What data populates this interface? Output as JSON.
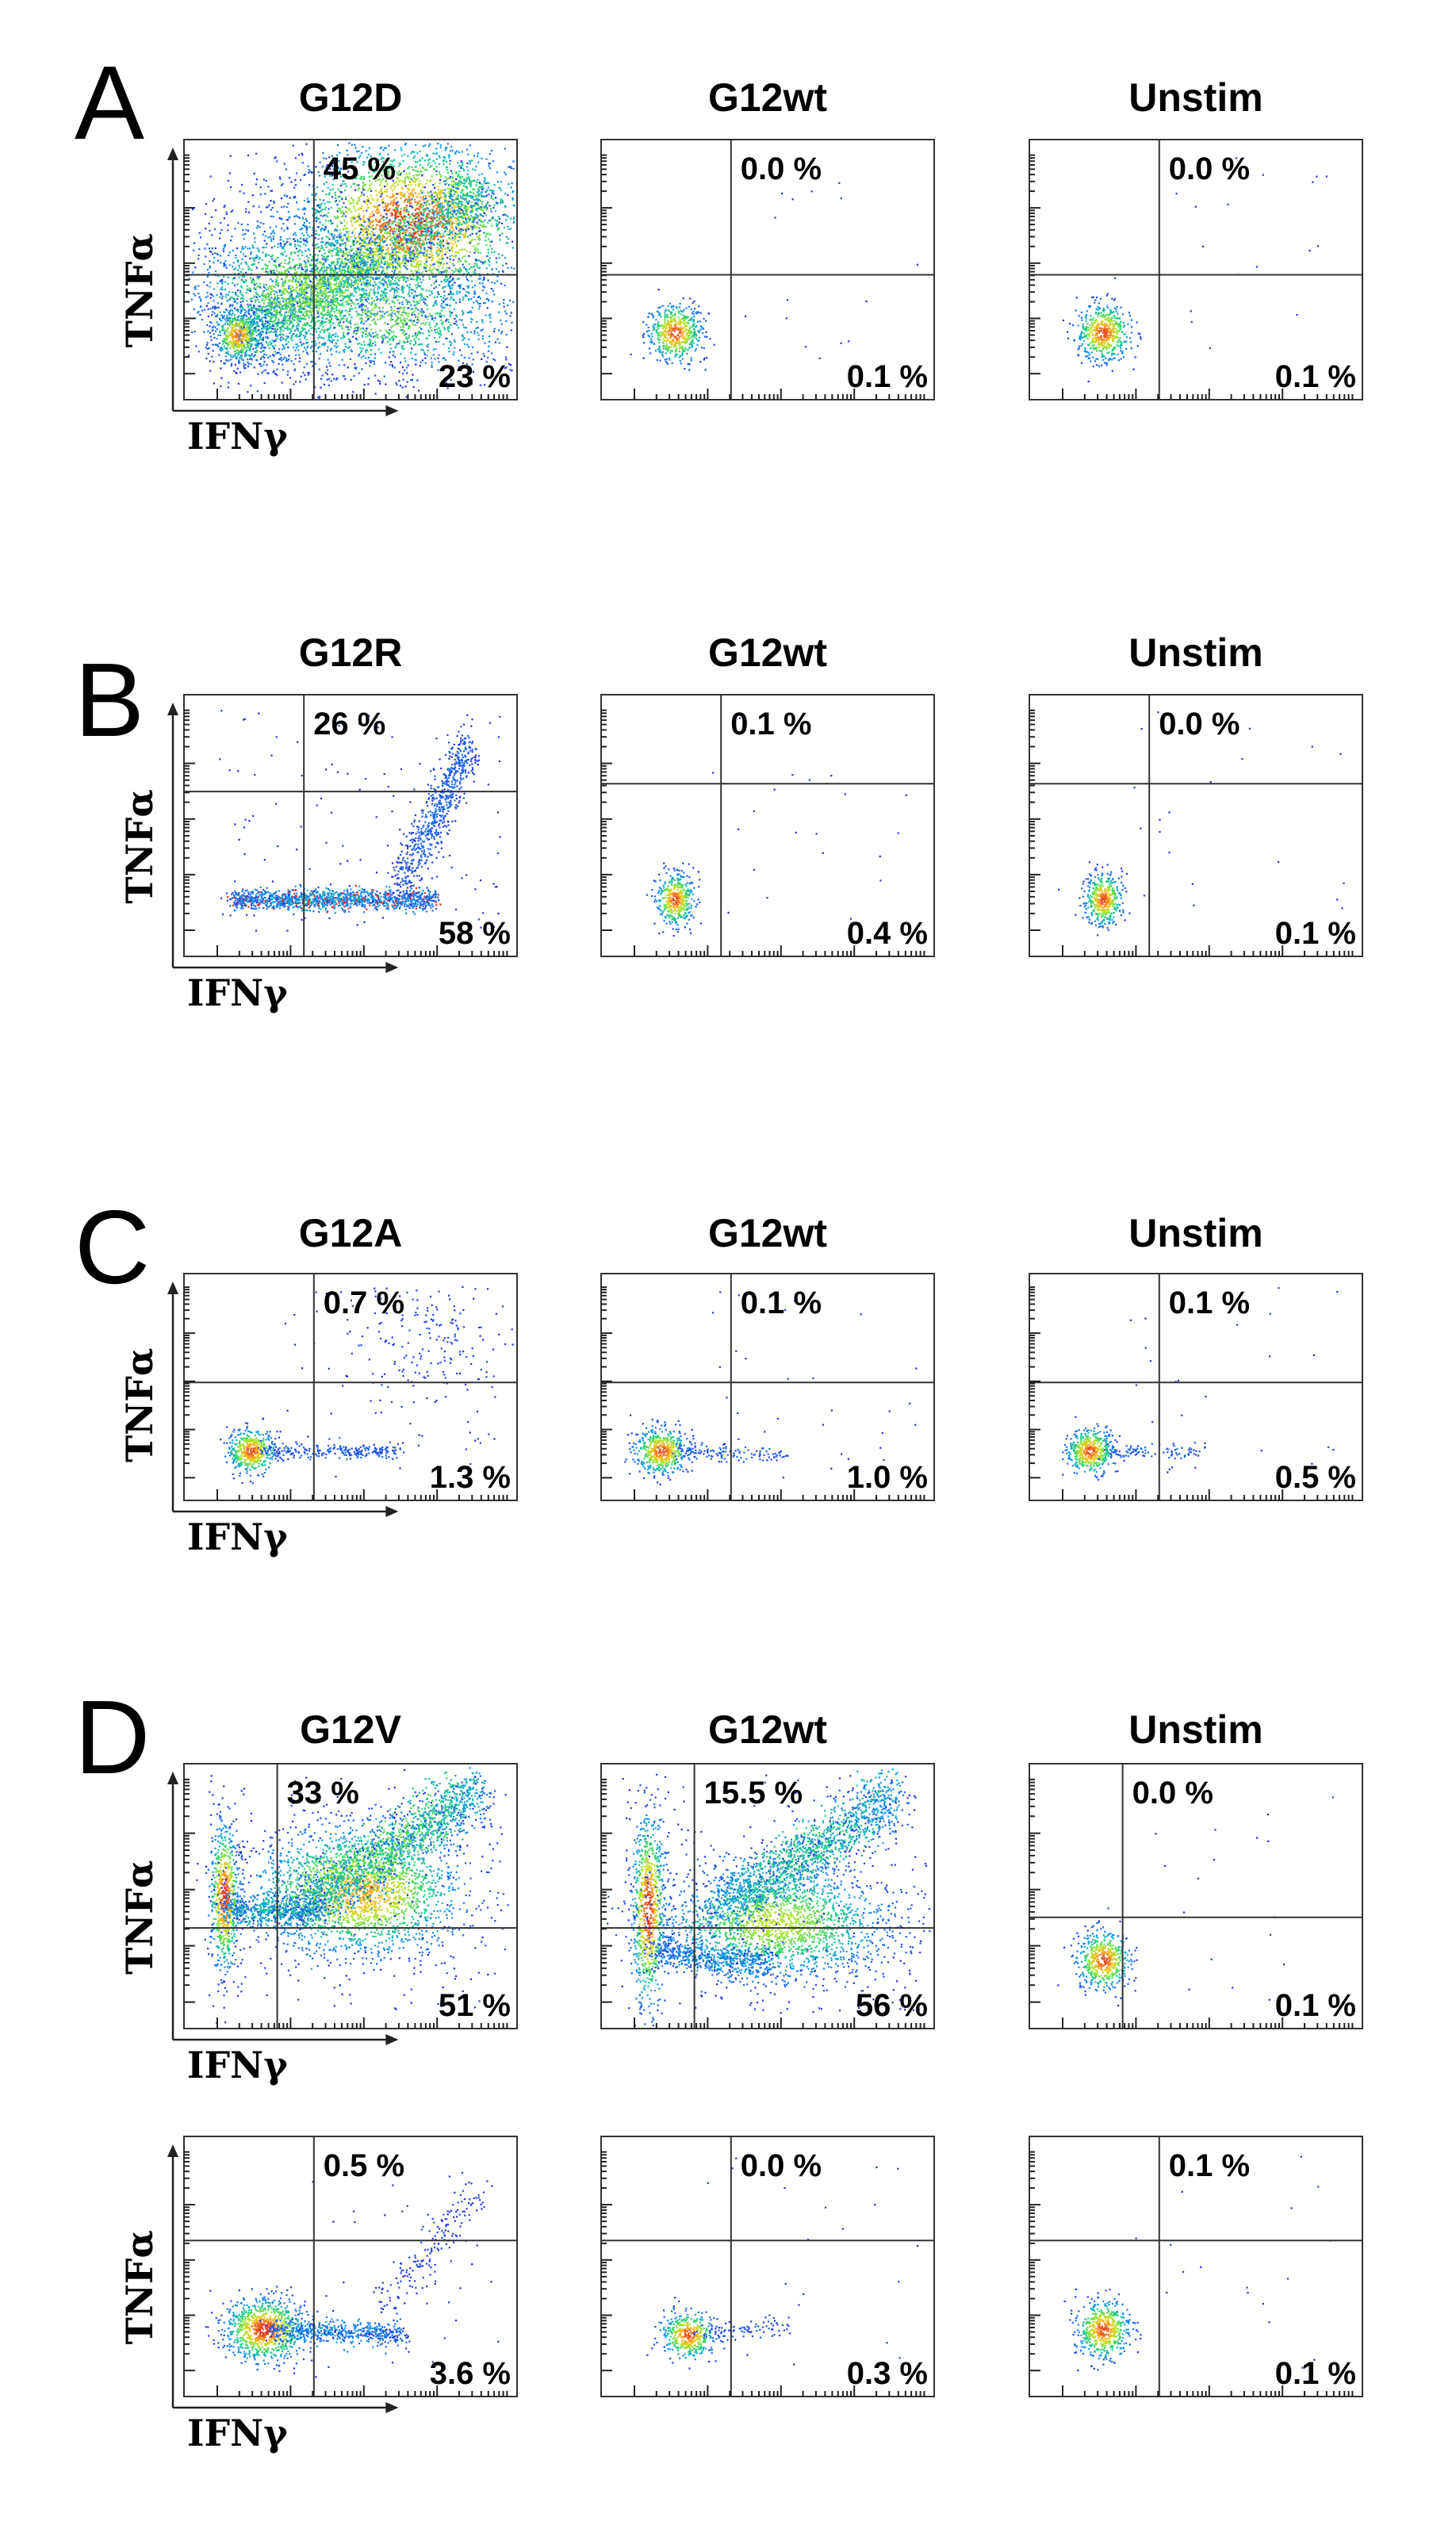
{
  "chart_data": {
    "type": "scatter",
    "kind": "flow-cytometry-density-plots",
    "x_axis_label": "IFNγ",
    "y_axis_label": "TNFα",
    "axis_scale": "log",
    "panels": [
      {
        "letter": "A",
        "plots": [
          {
            "title": "G12D",
            "upper_pct": "45 %",
            "lower_pct": "23 %",
            "preset": "a_g12d"
          },
          {
            "title": "G12wt",
            "upper_pct": "0.0 %",
            "lower_pct": "0.1 %",
            "preset": "neg"
          },
          {
            "title": "Unstim",
            "upper_pct": "0.0 %",
            "lower_pct": "0.1 %",
            "preset": "neg"
          }
        ]
      },
      {
        "letter": "B",
        "plots": [
          {
            "title": "G12R",
            "upper_pct": "26 %",
            "lower_pct": "58 %",
            "preset": "b_g12r"
          },
          {
            "title": "G12wt",
            "upper_pct": "0.1 %",
            "lower_pct": "0.4 %",
            "preset": "neg_small"
          },
          {
            "title": "Unstim",
            "upper_pct": "0.0 %",
            "lower_pct": "0.1 %",
            "preset": "neg_small"
          }
        ]
      },
      {
        "letter": "C",
        "plots": [
          {
            "title": "G12A",
            "upper_pct": "0.7 %",
            "lower_pct": "1.3 %",
            "preset": "c_g12a"
          },
          {
            "title": "G12wt",
            "upper_pct": "0.1 %",
            "lower_pct": "1.0 %",
            "preset": "c_wt"
          },
          {
            "title": "Unstim",
            "upper_pct": "0.1 %",
            "lower_pct": "0.5 %",
            "preset": "c_unstim"
          }
        ]
      },
      {
        "letter": "D",
        "plots": [
          {
            "title": "G12V",
            "upper_pct": "33 %",
            "lower_pct": "51 %",
            "preset": "d_g12v"
          },
          {
            "title": "G12wt",
            "upper_pct": "15.5 %",
            "lower_pct": "56 %",
            "preset": "d_wt"
          },
          {
            "title": "Unstim",
            "upper_pct": "0.0 %",
            "lower_pct": "0.1 %",
            "preset": "neg"
          }
        ]
      },
      {
        "letter": "",
        "plots": [
          {
            "title": "",
            "upper_pct": "0.5 %",
            "lower_pct": "3.6 %",
            "preset": "d2_g12v"
          },
          {
            "title": "",
            "upper_pct": "0.0 %",
            "lower_pct": "0.3 %",
            "preset": "neg_tail"
          },
          {
            "title": "",
            "upper_pct": "0.1 %",
            "lower_pct": "0.1 %",
            "preset": "neg"
          }
        ]
      }
    ]
  }
}
